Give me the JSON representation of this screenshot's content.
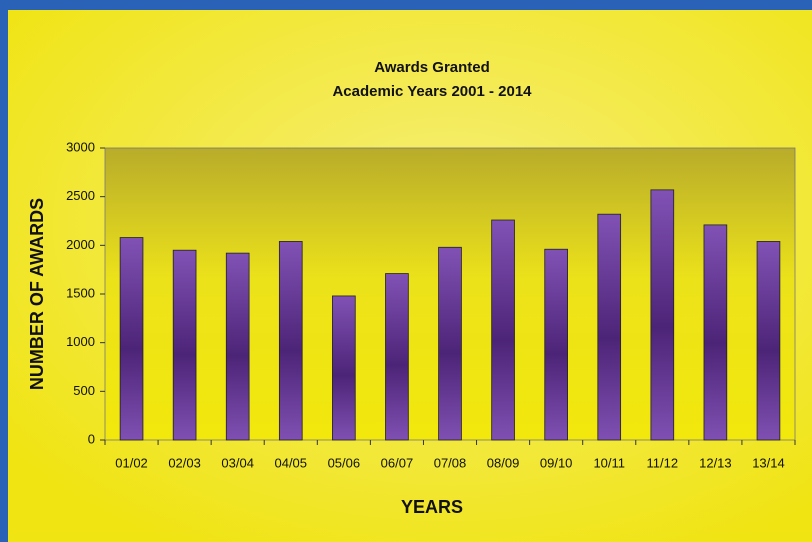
{
  "chart_data": {
    "type": "bar",
    "title": "Awards Granted",
    "subtitle": "Academic Years 2001 - 2014",
    "x_label": "YEARS",
    "y_label": "NUMBER OF AWARDS",
    "categories": [
      "01/02",
      "02/03",
      "03/04",
      "04/05",
      "05/06",
      "06/07",
      "07/08",
      "08/09",
      "09/10",
      "10/11",
      "11/12",
      "12/13",
      "13/14"
    ],
    "values": [
      2080,
      1950,
      1920,
      2040,
      1480,
      1710,
      1980,
      2260,
      1960,
      2320,
      2570,
      2210,
      2040
    ],
    "color": "#6b3a9e",
    "ylim": [
      0,
      3000
    ],
    "yticks": [
      0,
      500,
      1000,
      1500,
      2000,
      2500,
      3000
    ],
    "grid": false
  }
}
